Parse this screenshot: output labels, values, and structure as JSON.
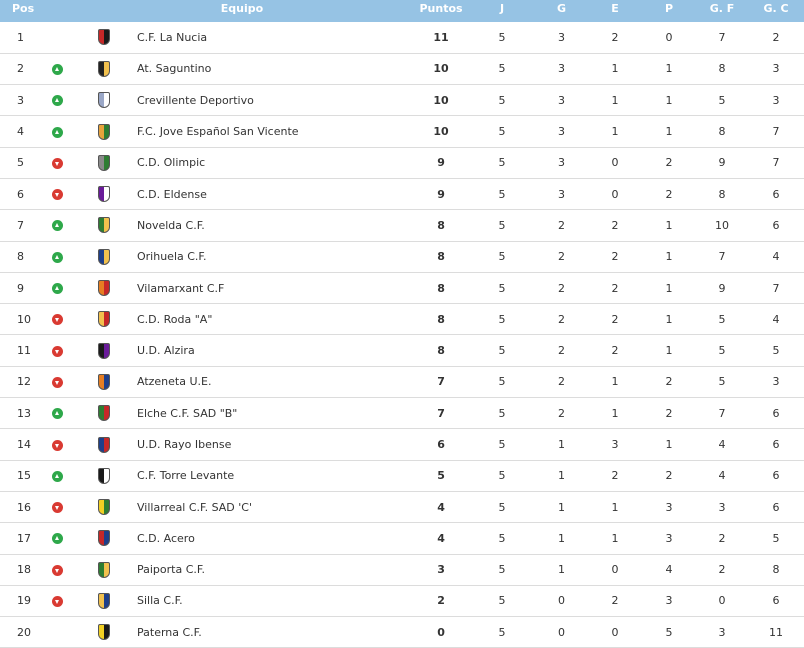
{
  "headers": {
    "pos": "Pos",
    "equipo": "Equipo",
    "puntos": "Puntos",
    "j": "J",
    "g": "G",
    "e": "E",
    "p": "P",
    "gf": "G. F",
    "gc": "G. C"
  },
  "colors": {
    "header_bg": "#96c3e4",
    "up": "#2ea84a",
    "down": "#d93a32"
  },
  "rows": [
    {
      "pos": "1",
      "trend": "none",
      "crest": [
        "#c62828",
        "#1a1a1a"
      ],
      "team": "C.F. La Nucia",
      "pts": "11",
      "j": "5",
      "g": "3",
      "e": "2",
      "p": "0",
      "gf": "7",
      "gc": "2"
    },
    {
      "pos": "2",
      "trend": "up",
      "crest": [
        "#222222",
        "#f2c14e"
      ],
      "team": "At. Saguntino",
      "pts": "10",
      "j": "5",
      "g": "3",
      "e": "1",
      "p": "1",
      "gf": "8",
      "gc": "3"
    },
    {
      "pos": "3",
      "trend": "up",
      "crest": [
        "#9aa7c7",
        "#ffffff"
      ],
      "team": "Crevillente Deportivo",
      "pts": "10",
      "j": "5",
      "g": "3",
      "e": "1",
      "p": "1",
      "gf": "5",
      "gc": "3"
    },
    {
      "pos": "4",
      "trend": "up",
      "crest": [
        "#e8a33c",
        "#2e7d32"
      ],
      "team": "F.C. Jove Español San Vicente",
      "pts": "10",
      "j": "5",
      "g": "3",
      "e": "1",
      "p": "1",
      "gf": "8",
      "gc": "7"
    },
    {
      "pos": "5",
      "trend": "down",
      "crest": [
        "#8a8a8a",
        "#2e7d32"
      ],
      "team": "C.D. Olimpic",
      "pts": "9",
      "j": "5",
      "g": "3",
      "e": "0",
      "p": "2",
      "gf": "9",
      "gc": "7"
    },
    {
      "pos": "6",
      "trend": "down",
      "crest": [
        "#6a1b9a",
        "#ffffff"
      ],
      "team": "C.D. Eldense",
      "pts": "9",
      "j": "5",
      "g": "3",
      "e": "0",
      "p": "2",
      "gf": "8",
      "gc": "6"
    },
    {
      "pos": "7",
      "trend": "up",
      "crest": [
        "#2e7d32",
        "#f2c14e"
      ],
      "team": "Novelda C.F.",
      "pts": "8",
      "j": "5",
      "g": "2",
      "e": "2",
      "p": "1",
      "gf": "10",
      "gc": "6"
    },
    {
      "pos": "8",
      "trend": "up",
      "crest": [
        "#1e3f8a",
        "#f2c14e"
      ],
      "team": "Orihuela C.F.",
      "pts": "8",
      "j": "5",
      "g": "2",
      "e": "2",
      "p": "1",
      "gf": "7",
      "gc": "4"
    },
    {
      "pos": "9",
      "trend": "up",
      "crest": [
        "#e67e22",
        "#c62828"
      ],
      "team": "Vilamarxant C.F",
      "pts": "8",
      "j": "5",
      "g": "2",
      "e": "2",
      "p": "1",
      "gf": "9",
      "gc": "7"
    },
    {
      "pos": "10",
      "trend": "down",
      "crest": [
        "#f2c14e",
        "#c62828"
      ],
      "team": "C.D. Roda \"A\"",
      "pts": "8",
      "j": "5",
      "g": "2",
      "e": "2",
      "p": "1",
      "gf": "5",
      "gc": "4"
    },
    {
      "pos": "11",
      "trend": "down",
      "crest": [
        "#1a1a1a",
        "#6a1b9a"
      ],
      "team": "U.D. Alzira",
      "pts": "8",
      "j": "5",
      "g": "2",
      "e": "2",
      "p": "1",
      "gf": "5",
      "gc": "5"
    },
    {
      "pos": "12",
      "trend": "down",
      "crest": [
        "#e67e22",
        "#1e3f8a"
      ],
      "team": "Atzeneta U.E.",
      "pts": "7",
      "j": "5",
      "g": "2",
      "e": "1",
      "p": "2",
      "gf": "5",
      "gc": "3"
    },
    {
      "pos": "13",
      "trend": "up",
      "crest": [
        "#2e7d32",
        "#c62828"
      ],
      "team": "Elche C.F. SAD \"B\"",
      "pts": "7",
      "j": "5",
      "g": "2",
      "e": "1",
      "p": "2",
      "gf": "7",
      "gc": "6"
    },
    {
      "pos": "14",
      "trend": "down",
      "crest": [
        "#1e3f8a",
        "#c62828"
      ],
      "team": "U.D. Rayo Ibense",
      "pts": "6",
      "j": "5",
      "g": "1",
      "e": "3",
      "p": "1",
      "gf": "4",
      "gc": "6"
    },
    {
      "pos": "15",
      "trend": "up",
      "crest": [
        "#1a1a1a",
        "#ffffff"
      ],
      "team": "C.F. Torre Levante",
      "pts": "5",
      "j": "5",
      "g": "1",
      "e": "2",
      "p": "2",
      "gf": "4",
      "gc": "6"
    },
    {
      "pos": "16",
      "trend": "down",
      "crest": [
        "#f2d024",
        "#2e7d32"
      ],
      "team": "Villarreal C.F. SAD 'C'",
      "pts": "4",
      "j": "5",
      "g": "1",
      "e": "1",
      "p": "3",
      "gf": "3",
      "gc": "6"
    },
    {
      "pos": "17",
      "trend": "up",
      "crest": [
        "#c62828",
        "#1e3f8a"
      ],
      "team": "C.D. Acero",
      "pts": "4",
      "j": "5",
      "g": "1",
      "e": "1",
      "p": "3",
      "gf": "2",
      "gc": "5"
    },
    {
      "pos": "18",
      "trend": "down",
      "crest": [
        "#2e7d32",
        "#f2c14e"
      ],
      "team": "Paiporta C.F.",
      "pts": "3",
      "j": "5",
      "g": "1",
      "e": "0",
      "p": "4",
      "gf": "2",
      "gc": "8"
    },
    {
      "pos": "19",
      "trend": "down",
      "crest": [
        "#f2c14e",
        "#1e3f8a"
      ],
      "team": "Silla C.F.",
      "pts": "2",
      "j": "5",
      "g": "0",
      "e": "2",
      "p": "3",
      "gf": "0",
      "gc": "6"
    },
    {
      "pos": "20",
      "trend": "none",
      "crest": [
        "#f2d024",
        "#1a1a1a"
      ],
      "team": "Paterna C.F.",
      "pts": "0",
      "j": "5",
      "g": "0",
      "e": "0",
      "p": "5",
      "gf": "3",
      "gc": "11"
    }
  ]
}
